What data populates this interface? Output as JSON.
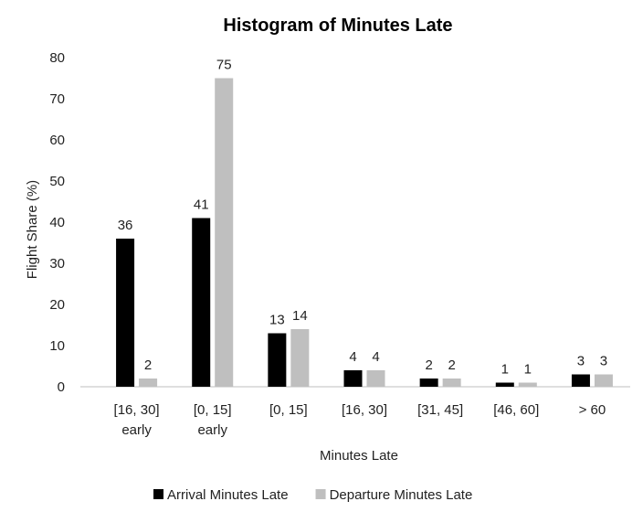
{
  "chart_data": {
    "type": "bar",
    "title": "Histogram of Minutes Late",
    "xlabel": "Minutes Late",
    "ylabel": "Flight Share (%)",
    "ylim": [
      0,
      80
    ],
    "yticks": [
      0,
      10,
      20,
      30,
      40,
      50,
      60,
      70,
      80
    ],
    "categories": [
      [
        "[16, 30]",
        "early"
      ],
      [
        "[0, 15]",
        "early"
      ],
      [
        "[0, 15]"
      ],
      [
        "[16, 30]"
      ],
      [
        "[31, 45]"
      ],
      [
        "[46, 60]"
      ],
      [
        "> 60"
      ]
    ],
    "series": [
      {
        "name": "Arrival Minutes Late",
        "color": "#000000",
        "values": [
          36,
          41,
          13,
          4,
          2,
          1,
          3
        ]
      },
      {
        "name": "Departure Minutes Late",
        "color": "#bfbfbf",
        "values": [
          2,
          75,
          14,
          4,
          2,
          1,
          3
        ]
      }
    ],
    "data_labels": true,
    "grid": false,
    "legend_position": "bottom"
  }
}
